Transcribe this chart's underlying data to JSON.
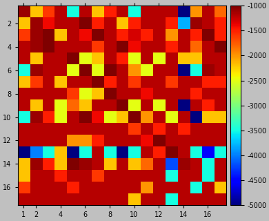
{
  "vmin": -5000,
  "vmax": -1000,
  "colormap": "jet",
  "colorbar_ticks": [
    -1000,
    -1500,
    -2000,
    -2500,
    -3000,
    -3500,
    -4000,
    -4500,
    -5000
  ],
  "xtick_positions": [
    0,
    1,
    3,
    5,
    7,
    9,
    11,
    13,
    15
  ],
  "xtick_labels": [
    "1",
    "2",
    "4",
    "6",
    "8",
    "10",
    "12",
    "14",
    "16"
  ],
  "ytick_positions": [
    1,
    3,
    5,
    7,
    9,
    11,
    13,
    15
  ],
  "ytick_labels": [
    "2",
    "4",
    "6",
    "8",
    "10",
    "12",
    "14",
    "16"
  ],
  "figsize": [
    3.9,
    3.2
  ],
  "dpi": 100,
  "matrix": [
    [
      -1100,
      -2200,
      -1600,
      -1200,
      -3500,
      -1200,
      -2200,
      -1500,
      -1200,
      -3500,
      -1200,
      -1200,
      -1200,
      -5000,
      -2000,
      -1200,
      -1800
    ],
    [
      -2200,
      -1100,
      -1400,
      -1200,
      -1200,
      -1000,
      -1500,
      -1200,
      -2200,
      -1500,
      -1200,
      -1200,
      -1500,
      -3800,
      -1100,
      -1200,
      -1500
    ],
    [
      -1600,
      -1100,
      -1000,
      -2200,
      -1200,
      -1400,
      -1000,
      -1200,
      -1500,
      -1300,
      -1500,
      -1200,
      -2000,
      -1200,
      -1500,
      -1000,
      -1500
    ],
    [
      -1200,
      -1100,
      -1000,
      -1200,
      -1200,
      -1200,
      -1600,
      -1200,
      -1000,
      -1400,
      -1200,
      -1200,
      -1500,
      -1200,
      -1800,
      -1200,
      -1000
    ],
    [
      -1200,
      -2200,
      -1200,
      -1200,
      -1000,
      -2500,
      -2200,
      -1200,
      -1500,
      -2500,
      -1200,
      -2500,
      -1200,
      -2200,
      -2200,
      -1200,
      -1200
    ],
    [
      -3500,
      -1100,
      -1200,
      -1200,
      -2500,
      -1000,
      -2500,
      -1000,
      -1200,
      -2000,
      -2500,
      -1200,
      -1200,
      -5000,
      -3500,
      -1100,
      -1200
    ],
    [
      -2200,
      -1600,
      -1200,
      -2200,
      -1200,
      -1200,
      -1000,
      -1500,
      -1200,
      -1600,
      -1200,
      -1200,
      -1600,
      -1200,
      -1200,
      -1500,
      -1500
    ],
    [
      -1200,
      -1200,
      -1200,
      -1200,
      -1600,
      -2500,
      -2200,
      -1000,
      -1200,
      -1200,
      -1400,
      -1200,
      -1200,
      -1200,
      -1500,
      -1200,
      -1200
    ],
    [
      -1200,
      -2200,
      -1200,
      -2500,
      -1800,
      -2200,
      -1200,
      -1200,
      -1000,
      -2500,
      -1200,
      -2500,
      -1200,
      -5000,
      -1200,
      -1500,
      -1200
    ],
    [
      -3500,
      -1100,
      -1500,
      -2500,
      -1200,
      -1000,
      -1400,
      -2500,
      -2200,
      -1000,
      -2000,
      -1200,
      -2500,
      -1200,
      -5000,
      -2200,
      -2200
    ],
    [
      -1200,
      -1200,
      -1200,
      -1200,
      -1200,
      -1200,
      -1200,
      -1200,
      -1200,
      -1600,
      -1200,
      -1500,
      -1200,
      -1500,
      -1200,
      -1200,
      -1200
    ],
    [
      -1200,
      -1200,
      -1200,
      -1200,
      -2000,
      -2000,
      -1500,
      -1200,
      -1200,
      -1200,
      -1400,
      -1000,
      -1200,
      -1200,
      -1200,
      -1200,
      -1200
    ],
    [
      -5000,
      -4000,
      -3500,
      -2200,
      -5000,
      -3500,
      -1200,
      -3500,
      -5000,
      -3500,
      -1200,
      -1500,
      -1000,
      -1200,
      -3500,
      -4500,
      -3500
    ],
    [
      -2200,
      -1100,
      -1500,
      -2200,
      -1000,
      -1100,
      -1200,
      -2200,
      -1200,
      -2200,
      -1800,
      -1200,
      -4200,
      -1100,
      -1200,
      -3500,
      -1200
    ],
    [
      -2200,
      -1200,
      -1200,
      -1500,
      -1200,
      -1200,
      -1600,
      -1200,
      -1200,
      -1200,
      -1200,
      -1200,
      -3500,
      -1200,
      -1200,
      -3500,
      -1200
    ],
    [
      -1600,
      -1200,
      -1200,
      -1200,
      -1500,
      -1200,
      -1200,
      -1200,
      -1200,
      -1200,
      -2000,
      -1200,
      -1200,
      -1200,
      -3500,
      -1200,
      -2200
    ],
    [
      -1200,
      -1200,
      -1200,
      -1200,
      -1200,
      -1200,
      -1200,
      -1200,
      -1200,
      -2200,
      -1200,
      -1200,
      -3500,
      -1200,
      -1200,
      -1200,
      -1200
    ]
  ]
}
